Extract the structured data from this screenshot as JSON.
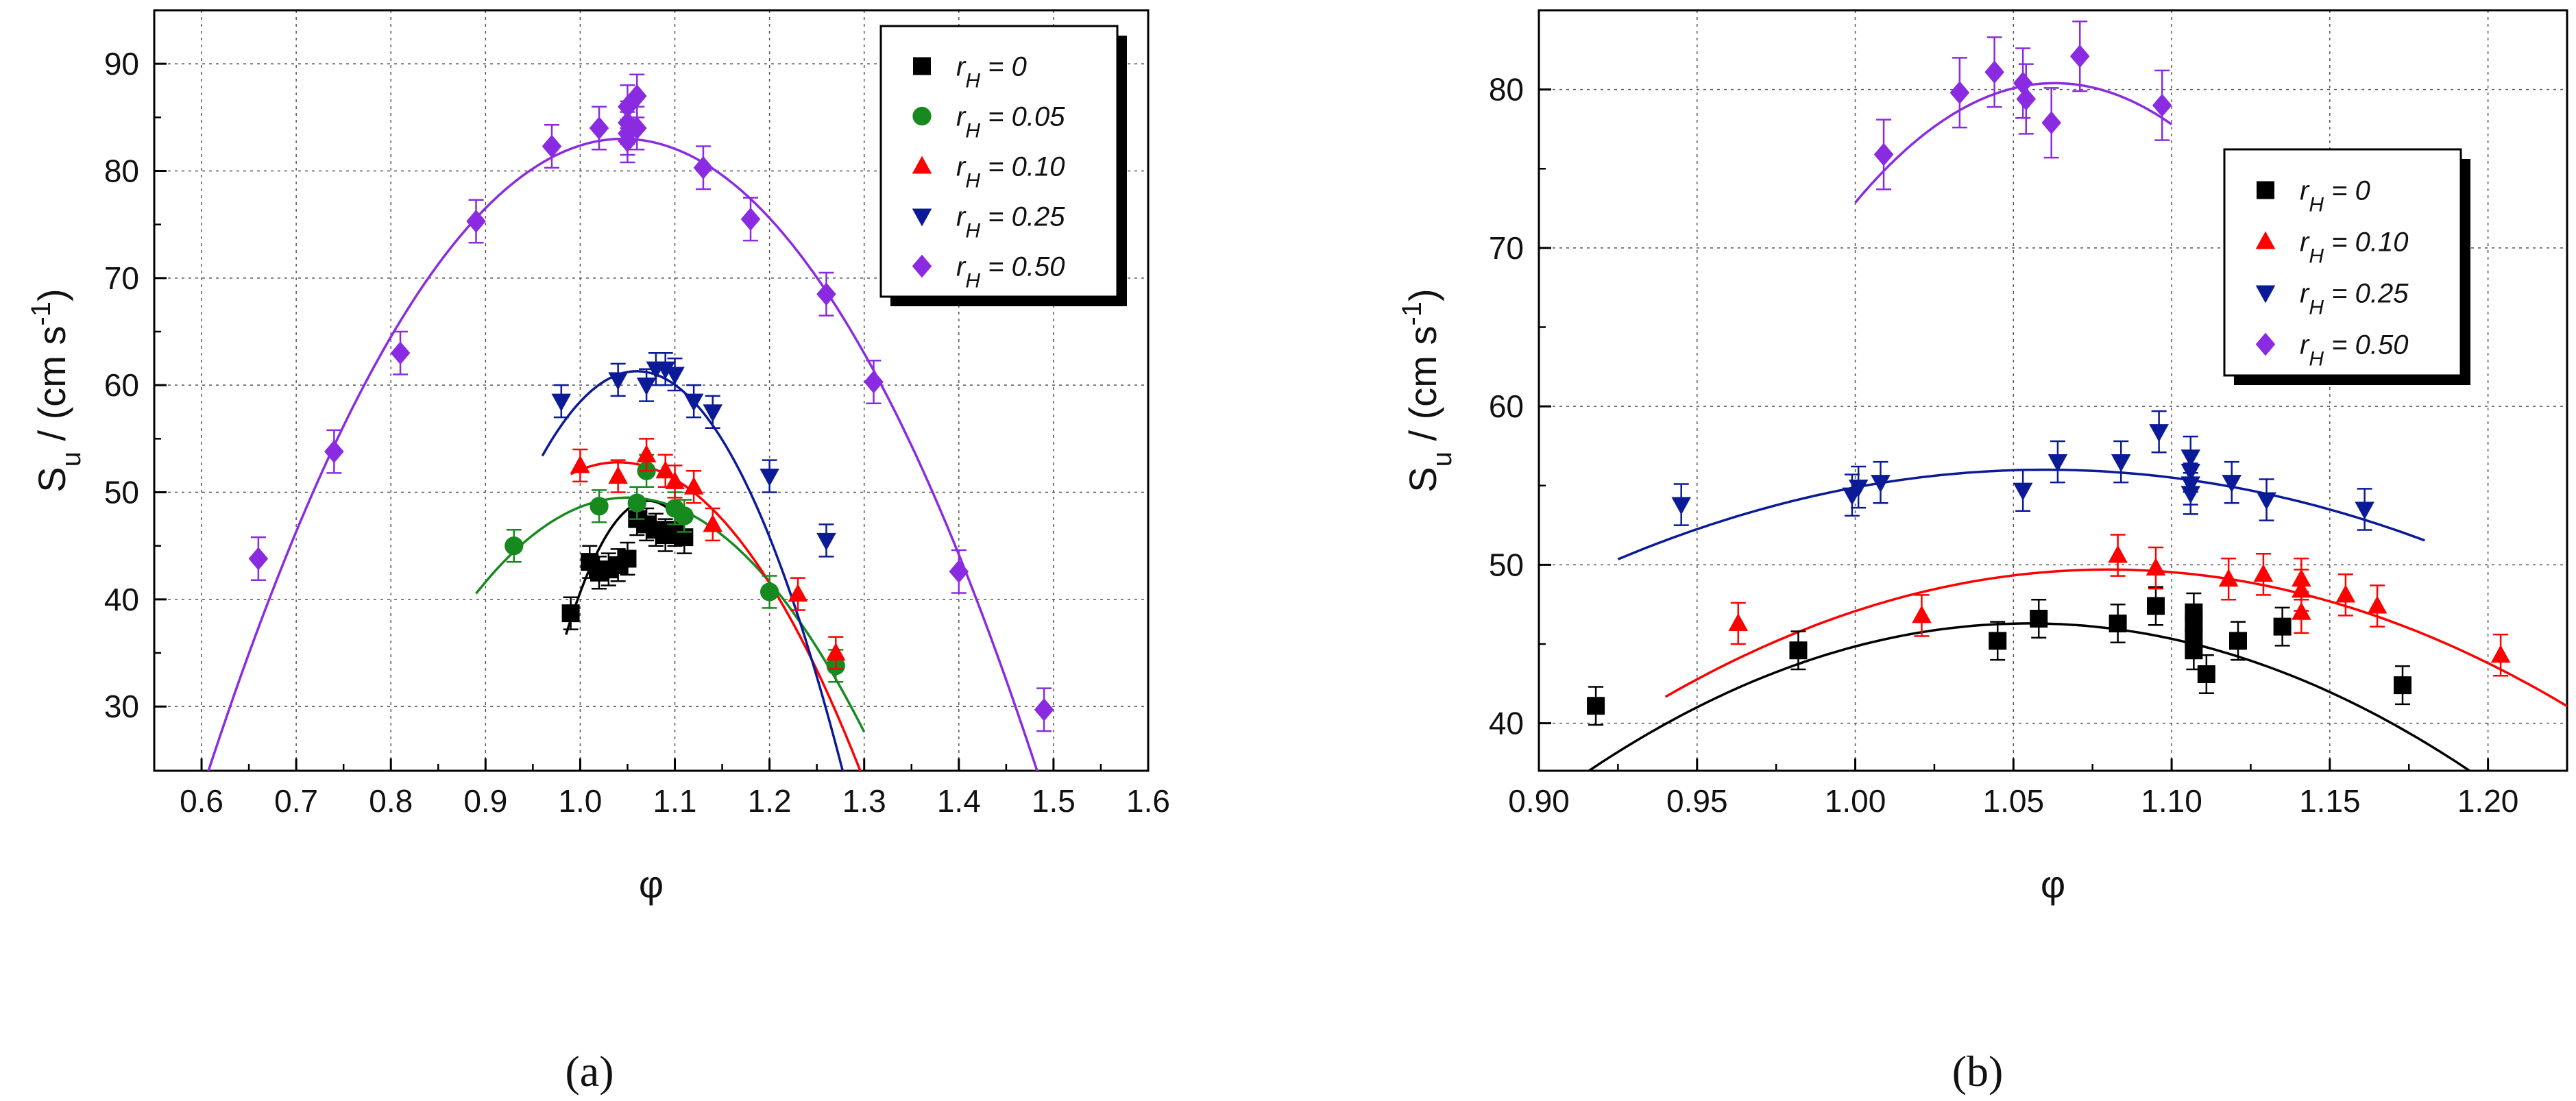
{
  "chart_data": [
    {
      "type": "scatter",
      "panel_label": "(a)",
      "xlabel": "φ",
      "ylabel": "S_u / (cm s^-1)",
      "xlim": [
        0.55,
        1.6
      ],
      "ylim": [
        24,
        95
      ],
      "xticks": [
        "0.6",
        "0.7",
        "0.8",
        "0.9",
        "1.0",
        "1.1",
        "1.2",
        "1.3",
        "1.4",
        "1.5",
        "1.6"
      ],
      "yticks": [
        "30",
        "40",
        "50",
        "60",
        "70",
        "80",
        "90"
      ],
      "grid": true,
      "legend_position": "top-right",
      "series": [
        {
          "name": "rH = 0",
          "sub": "H",
          "value_label": " = 0",
          "color": "#000000",
          "marker": "square",
          "x": [
            0.99,
            1.01,
            1.02,
            1.03,
            1.04,
            1.05,
            1.06,
            1.07,
            1.08,
            1.09,
            1.1,
            1.11
          ],
          "y": [
            38.7,
            43.5,
            42.5,
            42.8,
            43.2,
            43.8,
            47.5,
            47.0,
            46.5,
            46.0,
            46.5,
            45.8
          ],
          "err": 1.5,
          "fit": {
            "a": -1650,
            "b": 1.072,
            "c": 49.2,
            "x0": 0.985,
            "x1": 1.11
          }
        },
        {
          "name": "rH = 0.05",
          "sub": "H",
          "value_label": " = 0.05",
          "color": "#168a1e",
          "marker": "circle",
          "x": [
            0.93,
            1.02,
            1.06,
            1.07,
            1.1,
            1.11,
            1.2,
            1.27
          ],
          "y": [
            45.0,
            48.7,
            49.0,
            52.0,
            48.5,
            47.8,
            40.7,
            33.8
          ],
          "err": 1.5,
          "fit": {
            "a": -350,
            "b": 1.05,
            "c": 49.5,
            "x0": 0.89,
            "x1": 1.3
          }
        },
        {
          "name": "rH = 0.10",
          "sub": "H",
          "value_label": " = 0.10",
          "color": "#ff0000",
          "marker": "triangle-up",
          "x": [
            1.0,
            1.04,
            1.07,
            1.09,
            1.1,
            1.12,
            1.14,
            1.23,
            1.27
          ],
          "y": [
            52.5,
            51.5,
            53.5,
            52.0,
            51.0,
            50.5,
            47.0,
            40.5,
            35.0
          ],
          "err": 1.5,
          "fit": {
            "a": -440,
            "b": 1.04,
            "c": 52.8,
            "x0": 0.99,
            "x1": 1.3
          }
        },
        {
          "name": "rH = 0.25",
          "sub": "H",
          "value_label": " = 0.25",
          "color": "#0b1a96",
          "marker": "triangle-down",
          "x": [
            0.98,
            1.04,
            1.07,
            1.08,
            1.09,
            1.1,
            1.12,
            1.14,
            1.2,
            1.26
          ],
          "y": [
            58.5,
            60.5,
            60.0,
            61.5,
            61.5,
            61.0,
            58.5,
            57.5,
            51.5,
            45.5
          ],
          "err": 1.5,
          "fit": {
            "a": -790,
            "b": 1.06,
            "c": 61.3,
            "x0": 0.96,
            "x1": 1.29
          }
        },
        {
          "name": "rH = 0.50",
          "sub": "H",
          "value_label": " = 0.50",
          "color": "#8a2be2",
          "marker": "diamond",
          "x": [
            0.66,
            0.74,
            0.81,
            0.89,
            0.97,
            1.02,
            1.05,
            1.05,
            1.05,
            1.05,
            1.06,
            1.06,
            1.13,
            1.18,
            1.26,
            1.31,
            1.4,
            1.49
          ],
          "y": [
            43.8,
            53.8,
            63.0,
            75.3,
            82.3,
            84.0,
            84.5,
            83.5,
            82.8,
            86.0,
            87.0,
            84.0,
            80.3,
            75.5,
            68.5,
            60.3,
            42.6,
            29.7
          ],
          "err": 2.0,
          "fit": {
            "a": -308,
            "b": 1.045,
            "c": 83.0,
            "x0": 0.58,
            "x1": 1.51
          }
        }
      ]
    },
    {
      "type": "scatter",
      "panel_label": "(b)",
      "xlabel": "φ",
      "ylabel": "S_u / (cm s^-1)",
      "xlim": [
        0.9,
        1.225
      ],
      "ylim": [
        37,
        85
      ],
      "xticks": [
        "0.90",
        "0.95",
        "1.00",
        "1.05",
        "1.10",
        "1.15",
        "1.20"
      ],
      "yticks": [
        "40",
        "50",
        "60",
        "70",
        "80"
      ],
      "grid": true,
      "legend_position": "top-right",
      "series": [
        {
          "name": "rH = 0",
          "sub": "H",
          "value_label": " = 0",
          "color": "#000000",
          "marker": "square",
          "x": [
            0.918,
            0.982,
            1.045,
            1.058,
            1.083,
            1.095,
            1.107,
            1.107,
            1.107,
            1.107,
            1.111,
            1.121,
            1.135,
            1.173
          ],
          "y": [
            41.1,
            44.6,
            45.2,
            46.6,
            46.3,
            47.4,
            47.0,
            45.5,
            44.6,
            46.3,
            43.1,
            45.2,
            46.1,
            42.4
          ],
          "err": 1.2,
          "fit": {
            "a": -480,
            "b": 1.055,
            "c": 46.3,
            "x0": 0.9,
            "x1": 1.2
          }
        },
        {
          "name": "rH = 0.10",
          "sub": "H",
          "value_label": " = 0.10",
          "color": "#ff0000",
          "marker": "triangle-up",
          "x": [
            0.963,
            1.021,
            1.083,
            1.095,
            1.118,
            1.129,
            1.141,
            1.141,
            1.141,
            1.155,
            1.165,
            1.204
          ],
          "y": [
            46.3,
            46.8,
            50.6,
            49.8,
            49.1,
            49.4,
            49.1,
            48.4,
            47.0,
            48.1,
            47.4,
            44.3
          ],
          "err": 1.3,
          "fit": {
            "a": -410,
            "b": 1.08,
            "c": 49.7,
            "x0": 0.94,
            "x1": 1.225
          }
        },
        {
          "name": "rH = 0.25",
          "sub": "H",
          "value_label": " = 0.25",
          "color": "#0b1a96",
          "marker": "triangle-down",
          "x": [
            0.945,
            0.999,
            1.001,
            1.008,
            1.053,
            1.064,
            1.084,
            1.096,
            1.106,
            1.106,
            1.106,
            1.106,
            1.119,
            1.13,
            1.161
          ],
          "y": [
            53.8,
            54.4,
            54.9,
            55.2,
            54.7,
            56.5,
            56.5,
            58.4,
            56.8,
            55.9,
            55.1,
            54.5,
            55.2,
            54.1,
            53.5
          ],
          "err": 1.3,
          "fit": {
            "a": -310,
            "b": 1.06,
            "c": 56.0,
            "x0": 0.925,
            "x1": 1.18
          }
        },
        {
          "name": "rH = 0.50",
          "sub": "H",
          "value_label": " = 0.50",
          "color": "#8a2be2",
          "marker": "diamond",
          "x": [
            1.009,
            1.033,
            1.044,
            1.053,
            1.054,
            1.062,
            1.071,
            1.097
          ],
          "y": [
            75.9,
            79.8,
            81.1,
            80.4,
            79.4,
            77.9,
            82.1,
            79.0
          ],
          "err": 2.2,
          "fit": {
            "a": -1900,
            "b": 1.063,
            "c": 80.4,
            "x0": 1.0,
            "x1": 1.1
          }
        }
      ]
    }
  ]
}
